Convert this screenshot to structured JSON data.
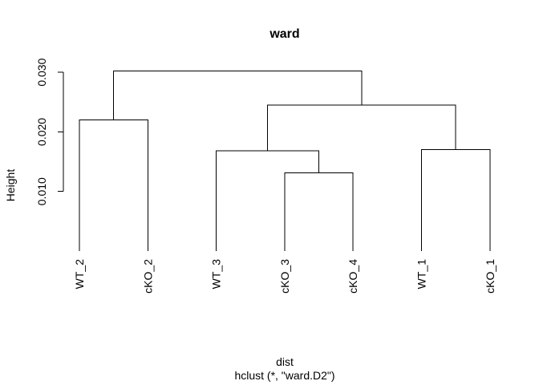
{
  "chart_data": {
    "type": "dendrogram",
    "title": "ward",
    "ylabel": "Height",
    "xlabel": "dist",
    "sub": "hclust (*, \"ward.D2\")",
    "ylim": [
      0,
      0.0315
    ],
    "yticks": [
      {
        "value": 0.01,
        "label": "0.010"
      },
      {
        "value": 0.02,
        "label": "0.020"
      },
      {
        "value": 0.03,
        "label": "0.030"
      }
    ],
    "leaves": [
      "WT_2",
      "cKO_2",
      "WT_3",
      "cKO_3",
      "cKO_4",
      "WT_1",
      "cKO_1"
    ],
    "hang_height": 0.0,
    "merges": [
      {
        "left": "leaf:WT_2",
        "right": "leaf:cKO_2",
        "height": 0.022
      },
      {
        "left": "leaf:cKO_3",
        "right": "leaf:cKO_4",
        "height": 0.0131
      },
      {
        "left": "leaf:WT_3",
        "right": "node:1",
        "height": 0.0168
      },
      {
        "left": "leaf:WT_1",
        "right": "leaf:cKO_1",
        "height": 0.017
      },
      {
        "left": "node:2",
        "right": "node:3",
        "height": 0.0245
      },
      {
        "left": "node:0",
        "right": "node:4",
        "height": 0.0302
      }
    ]
  }
}
